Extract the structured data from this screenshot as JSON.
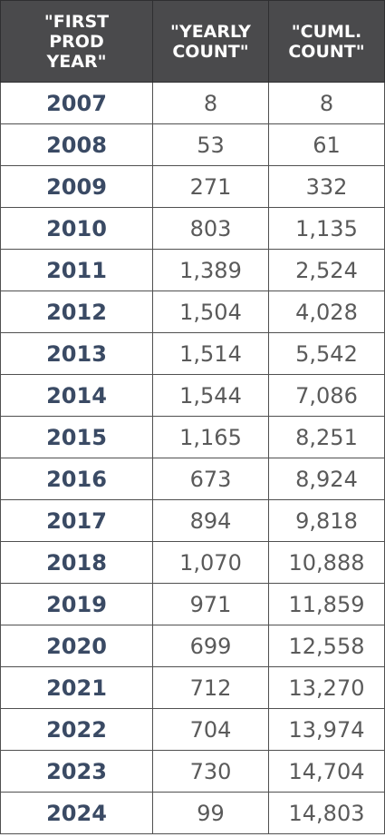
{
  "chart_data": {
    "type": "table",
    "columns": [
      "\"FIRST PROD YEAR\"",
      "\"YEARLY COUNT\"",
      "\"CUML. COUNT\""
    ],
    "header_lines": [
      [
        "\"FIRST",
        "PROD",
        "YEAR\""
      ],
      [
        "\"YEARLY",
        "COUNT\""
      ],
      [
        "\"CUML.",
        "COUNT\""
      ]
    ],
    "rows": [
      [
        "2007",
        "8",
        "8"
      ],
      [
        "2008",
        "53",
        "61"
      ],
      [
        "2009",
        "271",
        "332"
      ],
      [
        "2010",
        "803",
        "1,135"
      ],
      [
        "2011",
        "1,389",
        "2,524"
      ],
      [
        "2012",
        "1,504",
        "4,028"
      ],
      [
        "2013",
        "1,514",
        "5,542"
      ],
      [
        "2014",
        "1,544",
        "7,086"
      ],
      [
        "2015",
        "1,165",
        "8,251"
      ],
      [
        "2016",
        "673",
        "8,924"
      ],
      [
        "2017",
        "894",
        "9,818"
      ],
      [
        "2018",
        "1,070",
        "10,888"
      ],
      [
        "2019",
        "971",
        "11,859"
      ],
      [
        "2020",
        "699",
        "12,558"
      ],
      [
        "2021",
        "712",
        "13,270"
      ],
      [
        "2022",
        "704",
        "13,974"
      ],
      [
        "2023",
        "730",
        "14,704"
      ],
      [
        "2024",
        "99",
        "14,803"
      ]
    ]
  },
  "colors": {
    "header_bg": "#4a4a4c",
    "header_text": "#ffffff",
    "year_text": "#3a4a64",
    "value_text": "#5a5a5a",
    "border": "#505050"
  }
}
